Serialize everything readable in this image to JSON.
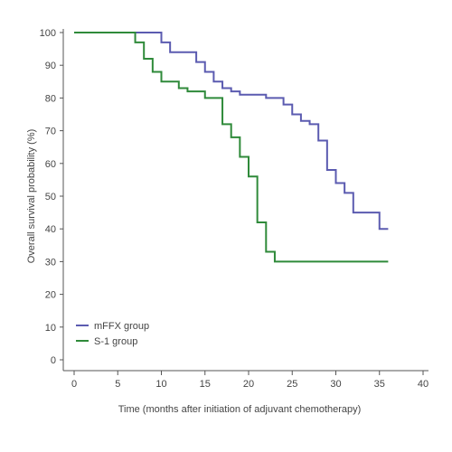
{
  "chart_data": {
    "type": "line",
    "title": "",
    "xlabel": "Time (months after initiation of adjuvant chemotherapy)",
    "ylabel": "Overall survival probability (%)",
    "xlim": [
      0,
      40
    ],
    "ylim": [
      0,
      100
    ],
    "xticks": [
      0,
      5,
      10,
      15,
      20,
      25,
      30,
      35,
      40
    ],
    "yticks": [
      0,
      10,
      20,
      30,
      40,
      50,
      60,
      70,
      80,
      90,
      100
    ],
    "grid": false,
    "legend_position": "bottom-left",
    "step": true,
    "series": [
      {
        "name": "mFFX group",
        "color": "#5b5bb0",
        "x": [
          0,
          10,
          11,
          14,
          15,
          16,
          17,
          18,
          19,
          22,
          24,
          25,
          26,
          27,
          28,
          29,
          30,
          31,
          32,
          35,
          36
        ],
        "y": [
          100,
          97,
          94,
          91,
          88,
          85,
          83,
          82,
          81,
          80,
          78,
          75,
          73,
          72,
          67,
          58,
          54,
          51,
          45,
          40,
          40
        ]
      },
      {
        "name": "S-1 group",
        "color": "#2f8a3a",
        "x": [
          0,
          7,
          8,
          9,
          10,
          12,
          13,
          15,
          17,
          18,
          19,
          20,
          21,
          22,
          23,
          36
        ],
        "y": [
          100,
          97,
          92,
          88,
          85,
          83,
          82,
          80,
          72,
          68,
          62,
          56,
          42,
          33,
          30,
          30
        ]
      }
    ]
  }
}
